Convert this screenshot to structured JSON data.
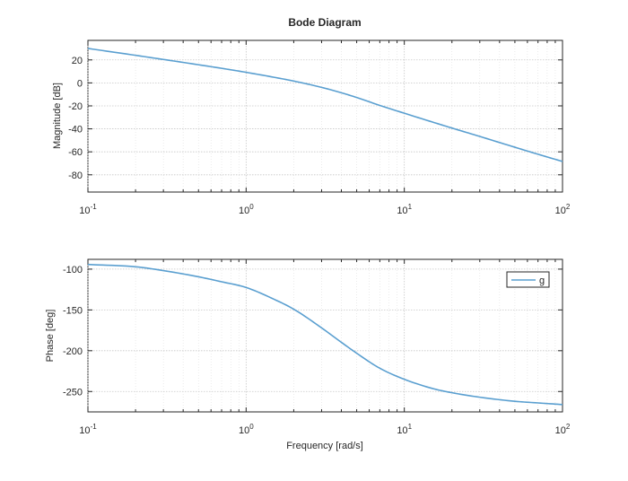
{
  "chart_data": [
    {
      "type": "line",
      "panel": "magnitude",
      "title": "Bode Diagram",
      "xlabel": "",
      "ylabel": "Magnitude [dB]",
      "xscale": "log",
      "xlim": [
        0.1,
        100
      ],
      "ylim": [
        -95,
        37
      ],
      "yticks": [
        20,
        0,
        -20,
        -40,
        -60,
        -80
      ],
      "xticks": [
        {
          "base": "10",
          "exp": "-1",
          "value": 0.1
        },
        {
          "base": "10",
          "exp": "0",
          "value": 1
        },
        {
          "base": "10",
          "exp": "1",
          "value": 10
        },
        {
          "base": "10",
          "exp": "2",
          "value": 100
        }
      ],
      "grid": true,
      "series": [
        {
          "color": "#5a9fd0",
          "x": [
            0.1,
            0.2,
            0.3,
            0.5,
            0.7,
            1,
            1.5,
            2,
            3,
            4,
            5,
            7,
            10,
            15,
            20,
            30,
            50,
            70,
            100
          ],
          "y": [
            30,
            24.0,
            20.4,
            15.8,
            12.7,
            9.2,
            4.9,
            1.6,
            -3.9,
            -8.6,
            -12.7,
            -19.6,
            -26.4,
            -34.0,
            -39.3,
            -46.6,
            -56.0,
            -62.1,
            -68.4
          ]
        }
      ]
    },
    {
      "type": "line",
      "panel": "phase",
      "title": "",
      "xlabel": "Frequency [rad/s]",
      "ylabel": "Phase [deg]",
      "xscale": "log",
      "xlim": [
        0.1,
        100
      ],
      "ylim": [
        -275,
        -88
      ],
      "yticks": [
        -100,
        -150,
        -200,
        -250
      ],
      "xticks": [
        {
          "base": "10",
          "exp": "-1",
          "value": 0.1
        },
        {
          "base": "10",
          "exp": "0",
          "value": 1
        },
        {
          "base": "10",
          "exp": "1",
          "value": 10
        },
        {
          "base": "10",
          "exp": "2",
          "value": 100
        }
      ],
      "grid": true,
      "legend": {
        "position": "top-right",
        "entries": [
          "g"
        ]
      },
      "series": [
        {
          "name": "g",
          "color": "#5a9fd0",
          "x": [
            0.1,
            0.2,
            0.3,
            0.5,
            0.7,
            1,
            1.5,
            2,
            3,
            4,
            5,
            7,
            10,
            15,
            20,
            30,
            50,
            70,
            100
          ],
          "y": [
            -94.3,
            -97.1,
            -101.8,
            -109.4,
            -115.5,
            -122.5,
            -136.9,
            -149.1,
            -172.0,
            -189.7,
            -203.1,
            -221.5,
            -235.0,
            -246.2,
            -251.5,
            -257.0,
            -262.0,
            -264.0,
            -266.0
          ]
        }
      ]
    }
  ]
}
